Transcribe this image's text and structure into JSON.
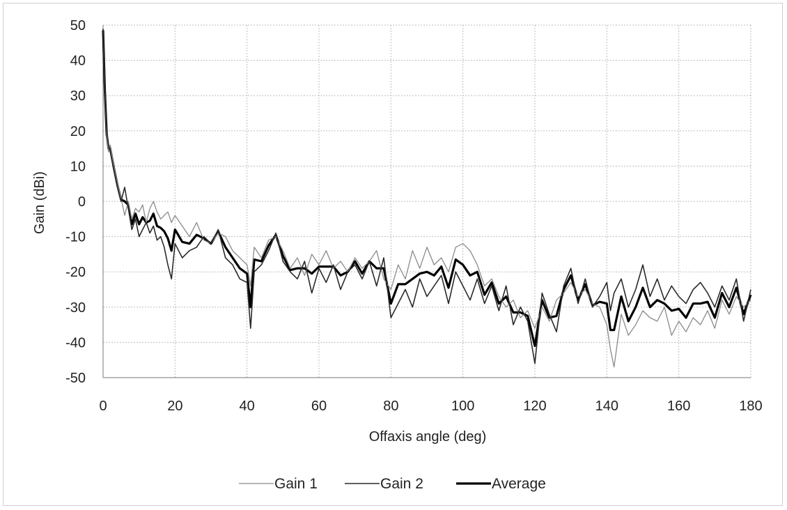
{
  "chart_data": {
    "type": "line",
    "title": "",
    "xlabel": "Offaxis angle (deg)",
    "ylabel": "Gain (dBi)",
    "xlim": [
      0,
      180
    ],
    "ylim": [
      -50,
      50
    ],
    "xticks": [
      "0",
      "20",
      "40",
      "60",
      "80",
      "100",
      "120",
      "140",
      "160",
      "180"
    ],
    "yticks": [
      "50",
      "40",
      "30",
      "20",
      "10",
      "0",
      "-10",
      "-20",
      "-30",
      "-40",
      "-50"
    ],
    "grid": true,
    "legend_position": "bottom",
    "series": [
      {
        "name": "Gain 1",
        "color": "#8a8a8a",
        "x": [
          0,
          0.5,
          1,
          1.5,
          2,
          3,
          4,
          5,
          6,
          7,
          8,
          9,
          10,
          11,
          12,
          13,
          14,
          15,
          16,
          17,
          18,
          19,
          20,
          22,
          24,
          26,
          28,
          30,
          32,
          34,
          36,
          38,
          40,
          41,
          42,
          44,
          46,
          48,
          50,
          52,
          54,
          56,
          58,
          60,
          62,
          64,
          66,
          68,
          70,
          72,
          74,
          76,
          78,
          80,
          82,
          84,
          86,
          88,
          90,
          92,
          94,
          96,
          98,
          100,
          102,
          104,
          106,
          108,
          110,
          112,
          114,
          116,
          118,
          120,
          122,
          124,
          126,
          128,
          130,
          132,
          134,
          136,
          138,
          140,
          141,
          142,
          144,
          146,
          148,
          150,
          152,
          154,
          156,
          158,
          160,
          162,
          164,
          166,
          168,
          170,
          172,
          174,
          176,
          178,
          180
        ],
        "values": [
          48,
          30,
          18,
          14,
          16,
          10,
          5,
          1,
          -4,
          0,
          -5,
          -2,
          -3,
          -1,
          -6,
          -2,
          0,
          -3,
          -5,
          -4,
          -3,
          -6,
          -4,
          -7,
          -10,
          -6,
          -11,
          -12,
          -9,
          -10,
          -14,
          -16,
          -18,
          -24,
          -13,
          -16,
          -11,
          -10,
          -14,
          -19,
          -16,
          -21,
          -15,
          -18,
          -14,
          -19,
          -17,
          -20,
          -16,
          -19,
          -17,
          -14,
          -22,
          -25,
          -18,
          -22,
          -14,
          -19,
          -13,
          -18,
          -16,
          -20,
          -13,
          -12,
          -14,
          -18,
          -24,
          -22,
          -27,
          -30,
          -28,
          -33,
          -31,
          -36,
          -30,
          -34,
          -28,
          -26,
          -23,
          -27,
          -25,
          -29,
          -30,
          -35,
          -42,
          -47,
          -32,
          -38,
          -35,
          -31,
          -33,
          -34,
          -30,
          -38,
          -34,
          -37,
          -33,
          -35,
          -31,
          -36,
          -28,
          -32,
          -27,
          -30,
          -28
        ]
      },
      {
        "name": "Gain 2",
        "color": "#2a2a2a",
        "x": [
          0,
          0.5,
          1,
          1.5,
          2,
          3,
          4,
          5,
          6,
          7,
          8,
          9,
          10,
          11,
          12,
          13,
          14,
          15,
          16,
          17,
          18,
          19,
          20,
          22,
          24,
          26,
          28,
          30,
          32,
          34,
          36,
          38,
          40,
          41,
          42,
          44,
          46,
          48,
          50,
          52,
          54,
          56,
          58,
          60,
          62,
          64,
          66,
          68,
          70,
          72,
          74,
          76,
          78,
          80,
          82,
          84,
          86,
          88,
          90,
          92,
          94,
          96,
          98,
          100,
          102,
          104,
          106,
          108,
          110,
          112,
          114,
          116,
          118,
          120,
          122,
          124,
          126,
          128,
          130,
          132,
          134,
          136,
          138,
          140,
          141,
          142,
          144,
          146,
          148,
          150,
          152,
          154,
          156,
          158,
          160,
          162,
          164,
          166,
          168,
          170,
          172,
          174,
          176,
          178,
          180
        ],
        "values": [
          49,
          32,
          20,
          16,
          14,
          9,
          4,
          0,
          4,
          -2,
          -8,
          -5,
          -10,
          -8,
          -6,
          -9,
          -7,
          -11,
          -10,
          -13,
          -18,
          -22,
          -12,
          -16,
          -14,
          -13,
          -10,
          -12,
          -8,
          -16,
          -18,
          -22,
          -23,
          -36,
          -20,
          -18,
          -14,
          -9,
          -17,
          -20,
          -22,
          -17,
          -26,
          -19,
          -23,
          -18,
          -25,
          -20,
          -18,
          -22,
          -17,
          -24,
          -16,
          -33,
          -29,
          -25,
          -30,
          -22,
          -27,
          -24,
          -21,
          -29,
          -20,
          -24,
          -28,
          -22,
          -29,
          -24,
          -31,
          -24,
          -35,
          -30,
          -34,
          -46,
          -26,
          -32,
          -37,
          -24,
          -19,
          -29,
          -22,
          -30,
          -27,
          -23,
          -31,
          -26,
          -22,
          -30,
          -25,
          -18,
          -27,
          -22,
          -28,
          -24,
          -27,
          -29,
          -25,
          -23,
          -26,
          -30,
          -24,
          -28,
          -22,
          -34,
          -25
        ]
      },
      {
        "name": "Average",
        "color": "#000000",
        "x": [
          0,
          0.5,
          1,
          1.5,
          2,
          3,
          4,
          5,
          6,
          7,
          8,
          9,
          10,
          11,
          12,
          13,
          14,
          15,
          16,
          17,
          18,
          19,
          20,
          22,
          24,
          26,
          28,
          30,
          32,
          34,
          36,
          38,
          40,
          41,
          42,
          44,
          46,
          48,
          50,
          52,
          54,
          56,
          58,
          60,
          62,
          64,
          66,
          68,
          70,
          72,
          74,
          76,
          78,
          80,
          82,
          84,
          86,
          88,
          90,
          92,
          94,
          96,
          98,
          100,
          102,
          104,
          106,
          108,
          110,
          112,
          114,
          116,
          118,
          120,
          122,
          124,
          126,
          128,
          130,
          132,
          134,
          136,
          138,
          140,
          141,
          142,
          144,
          146,
          148,
          150,
          152,
          154,
          156,
          158,
          160,
          162,
          164,
          166,
          168,
          170,
          172,
          174,
          176,
          178,
          180
        ],
        "values": [
          48.5,
          31,
          19,
          15,
          15,
          9.5,
          4.5,
          0.5,
          0,
          -1,
          -6.5,
          -3.5,
          -6.5,
          -4.5,
          -6,
          -5.5,
          -3.5,
          -7,
          -7.5,
          -8.5,
          -10.5,
          -14,
          -8,
          -11.5,
          -12,
          -9.5,
          -10.5,
          -12,
          -8.5,
          -13,
          -16,
          -19,
          -20.5,
          -30,
          -16.5,
          -17,
          -12.5,
          -9.5,
          -15.5,
          -19.5,
          -19,
          -19,
          -20.5,
          -18.5,
          -18.5,
          -18.5,
          -21,
          -20,
          -17,
          -20.5,
          -17,
          -19,
          -19,
          -29,
          -23.5,
          -23.5,
          -22,
          -20.5,
          -20,
          -21,
          -18.5,
          -24.5,
          -16.5,
          -18,
          -21,
          -20,
          -26.5,
          -23,
          -29,
          -27,
          -31.5,
          -31.5,
          -32.5,
          -41,
          -28,
          -33,
          -32.5,
          -25,
          -21,
          -28,
          -23.5,
          -29.5,
          -28.5,
          -29,
          -36.5,
          -36.5,
          -27,
          -34,
          -30,
          -24.5,
          -30,
          -28,
          -29,
          -31,
          -30.5,
          -33,
          -29,
          -29,
          -28.5,
          -33,
          -26,
          -30,
          -24.5,
          -32,
          -26.5
        ]
      }
    ]
  }
}
